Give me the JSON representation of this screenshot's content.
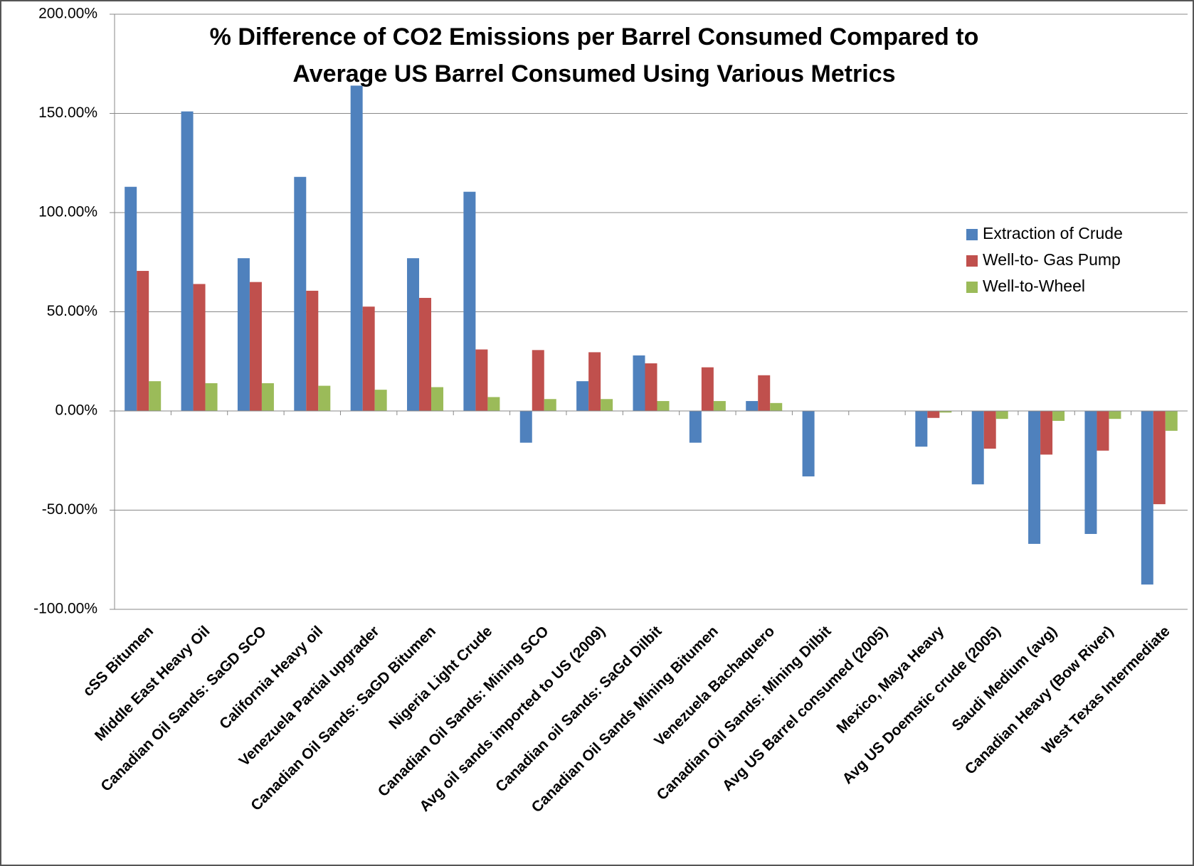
{
  "chart_data": {
    "type": "bar",
    "title": "% Difference of CO2 Emissions per Barrel Consumed Compared to Average US Barrel Consumed Using Various Metrics",
    "categories": [
      "cSS Bitumen",
      "Middle East Heavy Oil",
      "Canadian Oil Sands: SaGD SCO",
      "California Heavy oil",
      "Venezuela Partial upgrader",
      "Canadian Oil Sands: SaGD Bitumen",
      "Nigeria Light Crude",
      "Canadian Oil Sands: Mining SCO",
      "Avg oil sands imported to US (2009)",
      "Canadian oil Sands: SaGd Dilbit",
      "Canadian Oil Sands Mining Bitumen",
      "Venezuela Bachaquero",
      "Canadian Oil Sands: Mining Dilbit",
      "Avg US Barrel consumed (2005)",
      "Mexico, Maya Heavy",
      "Avg US Doemstic crude (2005)",
      "Saudi Medium (avg)",
      "Canadian Heavy (Bow River)",
      "West Texas Intermediate"
    ],
    "series": [
      {
        "name": "Extraction of Crude",
        "color": "#4f81bd",
        "values": [
          113,
          151,
          77,
          118,
          164,
          77,
          110.5,
          -16,
          15,
          28,
          -16,
          5,
          -33,
          0,
          -18,
          -37,
          -67,
          -62,
          -87.5
        ]
      },
      {
        "name": "Well-to- Gas Pump",
        "color": "#c0504d",
        "values": [
          70.6,
          64,
          65,
          60.6,
          52.6,
          57,
          31,
          30.7,
          29.6,
          24,
          22,
          18,
          0,
          0,
          -3.5,
          -19,
          -22,
          -20,
          -47
        ]
      },
      {
        "name": "Well-to-Wheel",
        "color": "#9bbb59",
        "values": [
          15,
          14,
          14,
          12.7,
          10.7,
          12,
          7,
          6,
          6,
          5,
          5,
          4,
          0,
          0,
          -0.8,
          -4,
          -5,
          -4,
          -10
        ]
      }
    ],
    "ylim": [
      -100,
      200
    ],
    "yticks": [
      {
        "value": -100,
        "label": "-100.00%"
      },
      {
        "value": -50,
        "label": "-50.00%"
      },
      {
        "value": 0,
        "label": "0.00%"
      },
      {
        "value": 50,
        "label": "50.00%"
      },
      {
        "value": 100,
        "label": "100.00%"
      },
      {
        "value": 150,
        "label": "150.00%"
      },
      {
        "value": 200,
        "label": "200.00%"
      }
    ],
    "grid": true,
    "legend": "right"
  }
}
